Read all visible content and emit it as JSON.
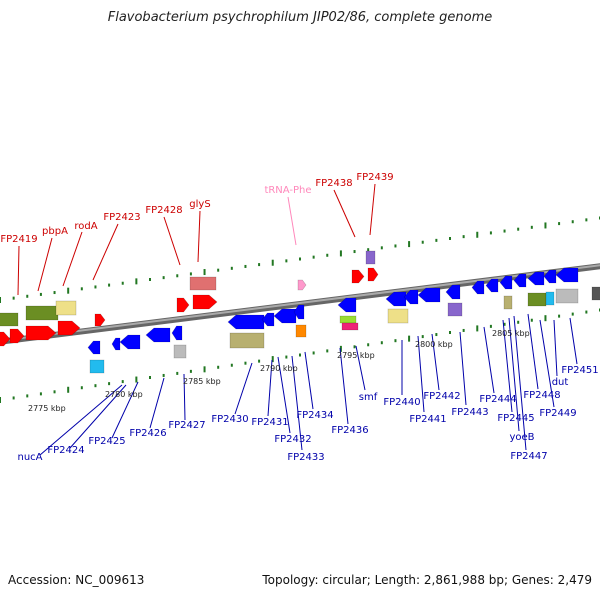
{
  "title": "Flavobacterium psychrophilum JIP02/86, complete genome",
  "footer": {
    "accession": "Accession: NC_009613",
    "stats": "Topology: circular; Length: 2,861,988 bp; Genes: 2,479"
  },
  "colors": {
    "forward_label": "#cc0000",
    "reverse_label": "#0000aa",
    "rna_label": "#ff88bb",
    "backbone": "#888888",
    "tick": "#227722",
    "forward_gene": "#ff0000",
    "reverse_gene": "#0000ff"
  },
  "scale_labels": [
    "2775 kbp",
    "2780 kbp",
    "2785 kbp",
    "2790 kbp",
    "2795 kbp",
    "2800 kbp",
    "2805 kbp"
  ],
  "forward_labels": [
    "FP2419",
    "pbpA",
    "rodA",
    "FP2423",
    "FP2428",
    "glyS",
    "tRNA-Phe",
    "FP2438",
    "FP2439"
  ],
  "reverse_labels": [
    "nucA",
    "FP2424",
    "FP2425",
    "FP2426",
    "FP2427",
    "FP2430",
    "FP2431",
    "FP2432",
    "FP2433",
    "FP2434",
    "FP2436",
    "smf",
    "FP2440",
    "FP2441",
    "FP2442",
    "FP2443",
    "FP2444",
    "FP2445",
    "yoeB",
    "FP2447",
    "FP2448",
    "FP2449",
    "dut",
    "FP2451"
  ]
}
